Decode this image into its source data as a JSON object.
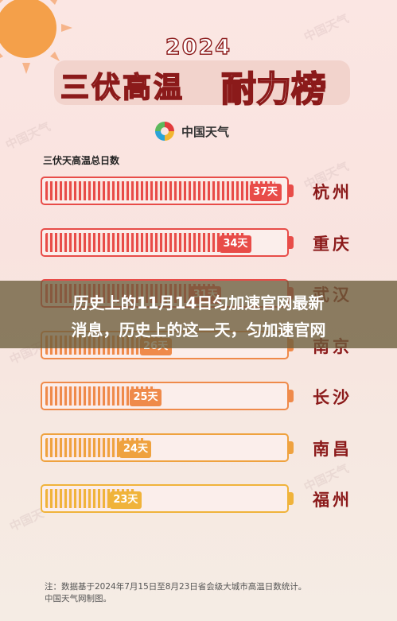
{
  "header": {
    "year": "2024",
    "title_part1": "三伏高温",
    "title_part2": "耐力榜"
  },
  "brand": {
    "name": "中国天气"
  },
  "watermark": "中国天气",
  "chart_data": {
    "type": "bar",
    "subtitle": "三伏天高温总日数",
    "categories": [
      "杭州",
      "重庆",
      "武汉",
      "南京",
      "长沙",
      "南昌",
      "福州"
    ],
    "values": [
      37,
      34,
      31,
      26,
      25,
      24,
      23
    ],
    "value_labels": [
      "37天",
      "34天",
      "31天",
      "26天",
      "25天",
      "24天",
      "23天"
    ],
    "xlim": [
      0,
      40
    ],
    "colors": [
      "#e84c48",
      "#e84c48",
      "#e84c48",
      "#ef8a4a",
      "#ef8a4a",
      "#efa23f",
      "#f0b33a"
    ]
  },
  "overlay": {
    "line1": "历史上的11月14日匀加速官网最新",
    "line2": "消息，历史上的这一天，匀加速官网"
  },
  "note": {
    "line1": "注：数据基于2024年7月15日至8月23日省会级大城市高温日数统计。",
    "line2": "中国天气网制图。"
  }
}
